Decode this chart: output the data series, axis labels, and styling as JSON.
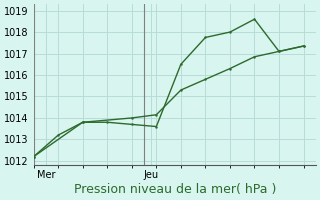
{
  "line1_x": [
    0,
    1,
    2,
    3,
    4,
    5,
    6,
    7,
    8,
    9,
    10,
    11
  ],
  "line1_y": [
    1012.2,
    1013.2,
    1013.8,
    1013.8,
    1013.7,
    1013.6,
    1016.5,
    1017.75,
    1018.0,
    1018.6,
    1017.1,
    1017.35
  ],
  "line2_x": [
    0,
    2,
    4,
    5,
    6,
    7,
    8,
    9,
    10,
    11
  ],
  "line2_y": [
    1012.2,
    1013.8,
    1014.0,
    1014.15,
    1015.3,
    1015.8,
    1016.3,
    1016.85,
    1017.1,
    1017.35
  ],
  "line_color": "#2d6a2d",
  "bg_color": "#d8f5f0",
  "grid_color": "#b8dcd8",
  "ylim": [
    1011.8,
    1019.3
  ],
  "yticks": [
    1012,
    1013,
    1014,
    1015,
    1016,
    1017,
    1018,
    1019
  ],
  "xlim": [
    0,
    11.5
  ],
  "vline_positions": [
    0,
    4.5
  ],
  "xtick_positions": [
    0.5,
    4.8
  ],
  "xtick_labels": [
    "Mer",
    "Jeu"
  ],
  "xlabel": "Pression niveau de la mer( hPa )",
  "xlabel_fontsize": 9,
  "tick_fontsize": 7
}
